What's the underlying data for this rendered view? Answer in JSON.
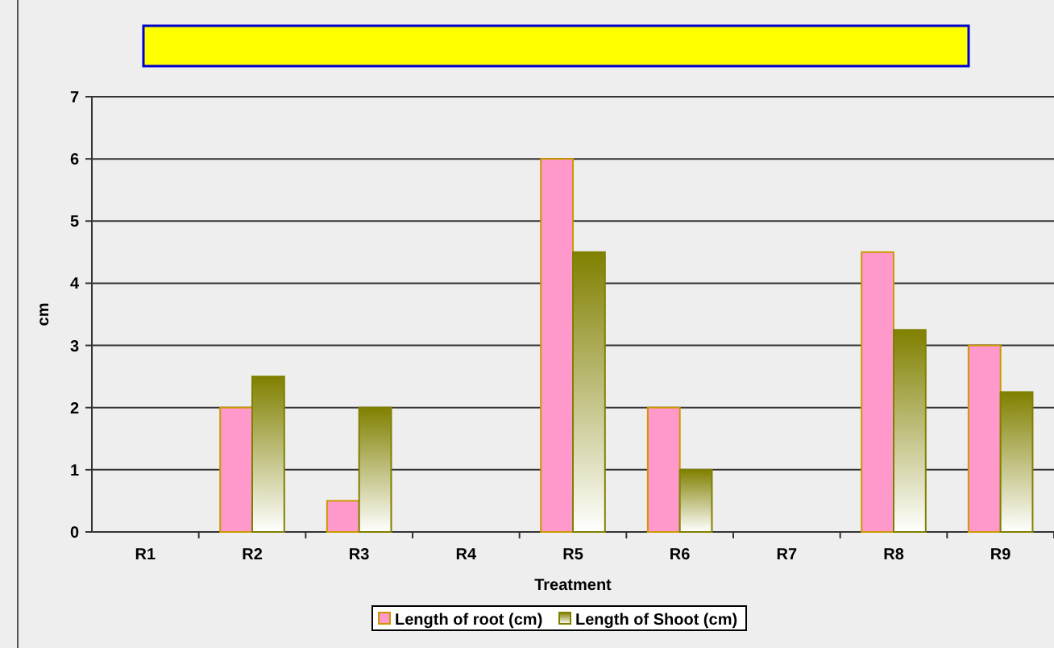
{
  "chart_data": {
    "type": "bar",
    "xlabel": "Treatment",
    "ylabel": "cm",
    "categories": [
      "R1",
      "R2",
      "R3",
      "R4",
      "R5",
      "R6",
      "R7",
      "R8",
      "R9"
    ],
    "series": [
      {
        "name": "Length of root (cm)",
        "color": "#ff99cc",
        "values": [
          null,
          2,
          0.5,
          null,
          6,
          2,
          null,
          4.5,
          3
        ]
      },
      {
        "name": "Length of Shoot (cm)",
        "color": "#808000",
        "values": [
          null,
          2.5,
          2,
          null,
          4.5,
          1,
          null,
          3.25,
          2.25
        ]
      }
    ],
    "ylim": [
      0,
      7
    ],
    "yticks": [
      0,
      1,
      2,
      3,
      4,
      5,
      6,
      7
    ],
    "grid": "y",
    "legend": "bottom"
  }
}
